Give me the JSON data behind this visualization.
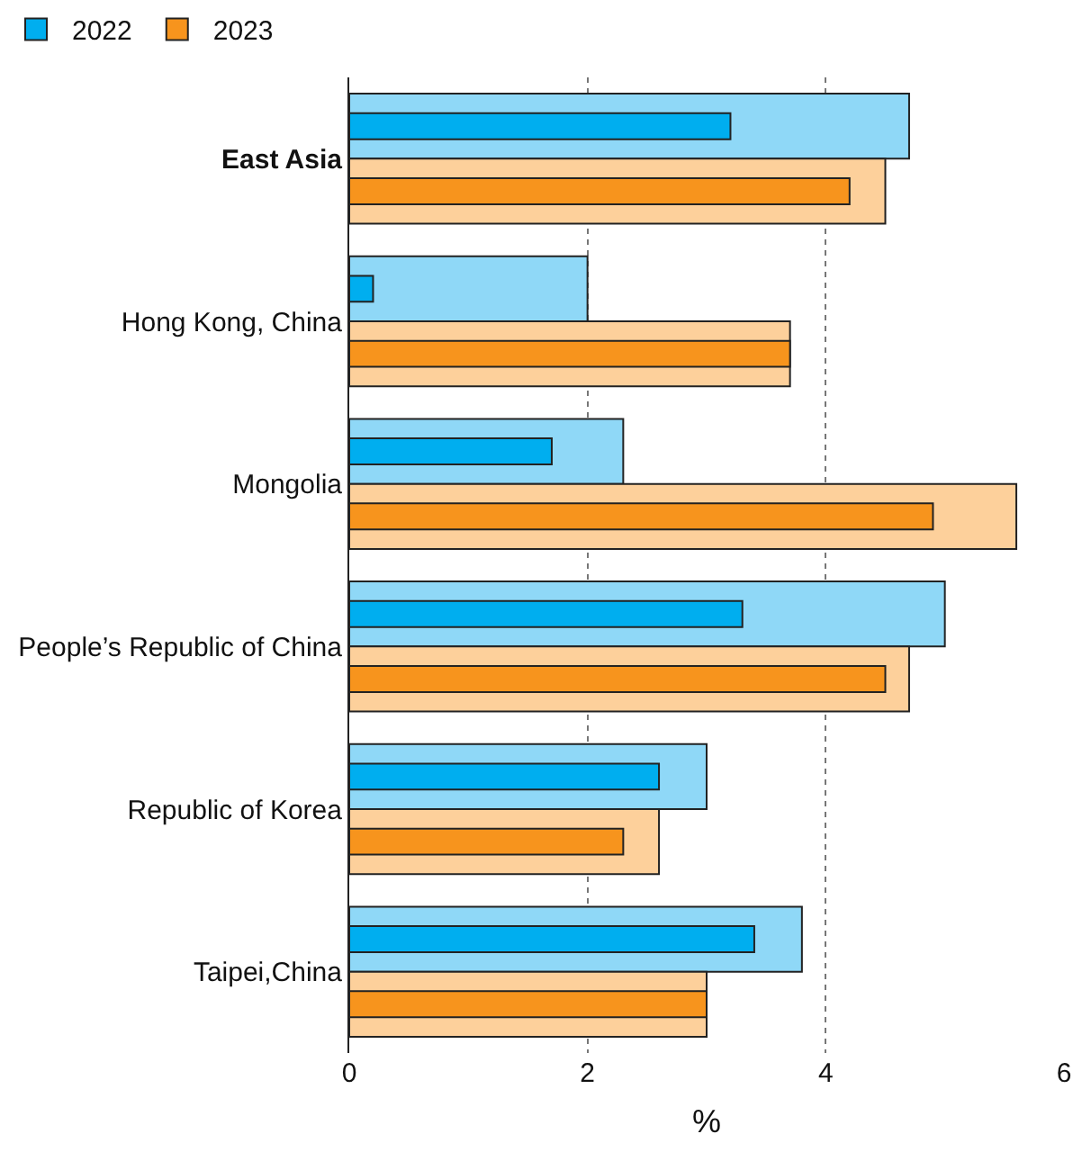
{
  "chart_data": {
    "type": "bar",
    "orientation": "horizontal",
    "xlabel": "%",
    "categories": [
      "East Asia",
      "Hong Kong, China",
      "Mongolia",
      "People’s Republic of China",
      "Republic of Korea",
      "Taipei,China"
    ],
    "series": [
      {
        "color": "#8fd8f7",
        "values": [
          4.7,
          2.0,
          2.3,
          5.0,
          3.0,
          3.8
        ]
      },
      {
        "name": "2022",
        "color": "#00aeef",
        "values": [
          3.2,
          0.2,
          1.7,
          3.3,
          2.6,
          3.4
        ]
      },
      {
        "color": "#fdd09b",
        "values": [
          4.5,
          3.7,
          5.6,
          4.7,
          2.6,
          3.0
        ]
      },
      {
        "name": "2023",
        "color": "#f7941d",
        "values": [
          4.2,
          3.7,
          4.9,
          4.5,
          2.3,
          3.0
        ]
      }
    ],
    "xlim": [
      0,
      6
    ],
    "xticks": [
      0,
      2,
      4,
      6
    ],
    "grid": "x",
    "legend": "top left"
  }
}
